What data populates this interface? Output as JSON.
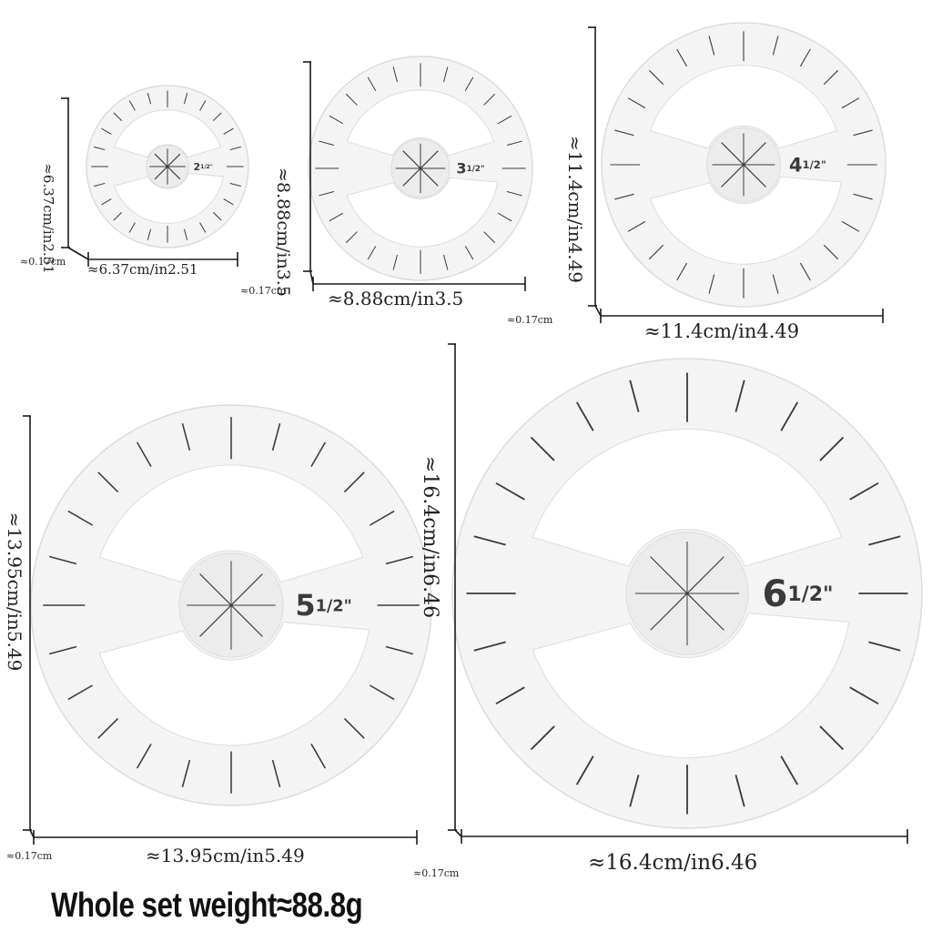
{
  "weight_label": "Whole set weight≈88.8g",
  "thickness_label": "≈0.17cm",
  "templates": [
    {
      "size_whole": "2",
      "size_fraction": "1/2",
      "size_mark": "\"",
      "height_label": "≈6.37cm/in2.51",
      "width_label": "≈6.37cm/in2.51"
    },
    {
      "size_whole": "3",
      "size_fraction": "1/2",
      "size_mark": "\"",
      "height_label": "≈8.88cm/in3.5",
      "width_label": "≈8.88cm/in3.5"
    },
    {
      "size_whole": "4",
      "size_fraction": "1/2",
      "size_mark": "\"",
      "height_label": "≈11.4cm/in4.49",
      "width_label": "≈11.4cm/in4.49"
    },
    {
      "size_whole": "5",
      "size_fraction": "1/2",
      "size_mark": "\"",
      "height_label": "≈13.95cm/in5.49",
      "width_label": "≈13.95cm/in5.49"
    },
    {
      "size_whole": "6",
      "size_fraction": "1/2",
      "size_mark": "\"",
      "height_label": "≈16.4cm/in6.46",
      "width_label": "≈16.4cm/in6.46"
    }
  ],
  "colors": {
    "plastic": "#f4f4f4",
    "plastic_edge": "#dcdcdc",
    "ticks": "#3c3c3c",
    "dimension_lines": "#1a1a1a"
  }
}
